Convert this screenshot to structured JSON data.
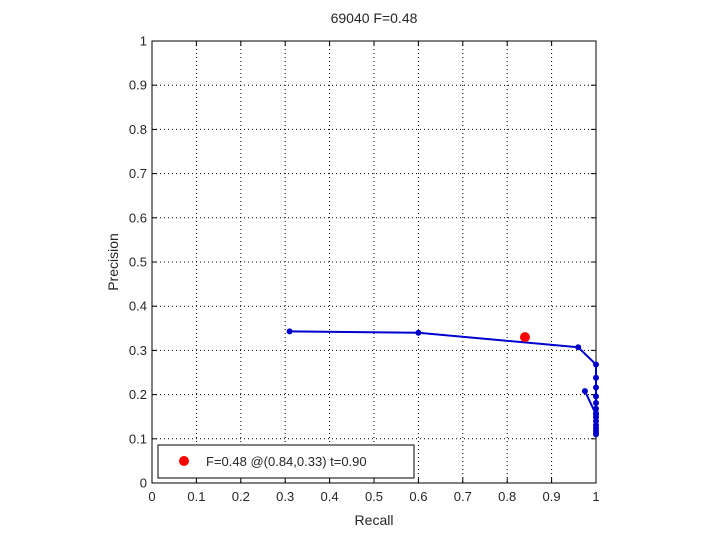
{
  "chart_data": {
    "type": "line",
    "title": "69040 F=0.48",
    "xlabel": "Recall",
    "ylabel": "Precision",
    "xlim": [
      0,
      1
    ],
    "ylim": [
      0,
      1
    ],
    "xticks": [
      "0",
      "0.1",
      "0.2",
      "0.3",
      "0.4",
      "0.5",
      "0.6",
      "0.7",
      "0.8",
      "0.9",
      "1"
    ],
    "yticks": [
      "0",
      "0.1",
      "0.2",
      "0.3",
      "0.4",
      "0.5",
      "0.6",
      "0.7",
      "0.8",
      "0.9",
      "1"
    ],
    "grid": true,
    "legend_position": "bottom-left",
    "series": [
      {
        "color": "#0000cc",
        "x": [
          0.31,
          0.6,
          0.96,
          1.0,
          1.0,
          1.0,
          1.0,
          1.0,
          1.0,
          1.0,
          1.0,
          1.0,
          1.0,
          1.0,
          1.0,
          1.0,
          1.0,
          1.0,
          0.975
        ],
        "y": [
          0.343,
          0.34,
          0.307,
          0.268,
          0.238,
          0.216,
          0.196,
          0.181,
          0.168,
          0.158,
          0.149,
          0.14,
          0.131,
          0.124,
          0.118,
          0.113,
          0.11,
          0.155,
          0.208
        ]
      }
    ],
    "best_point": {
      "x": 0.84,
      "y": 0.33,
      "color": "#ff0000",
      "label": "F=0.48 @(0.84,0.33) t=0.90"
    }
  }
}
